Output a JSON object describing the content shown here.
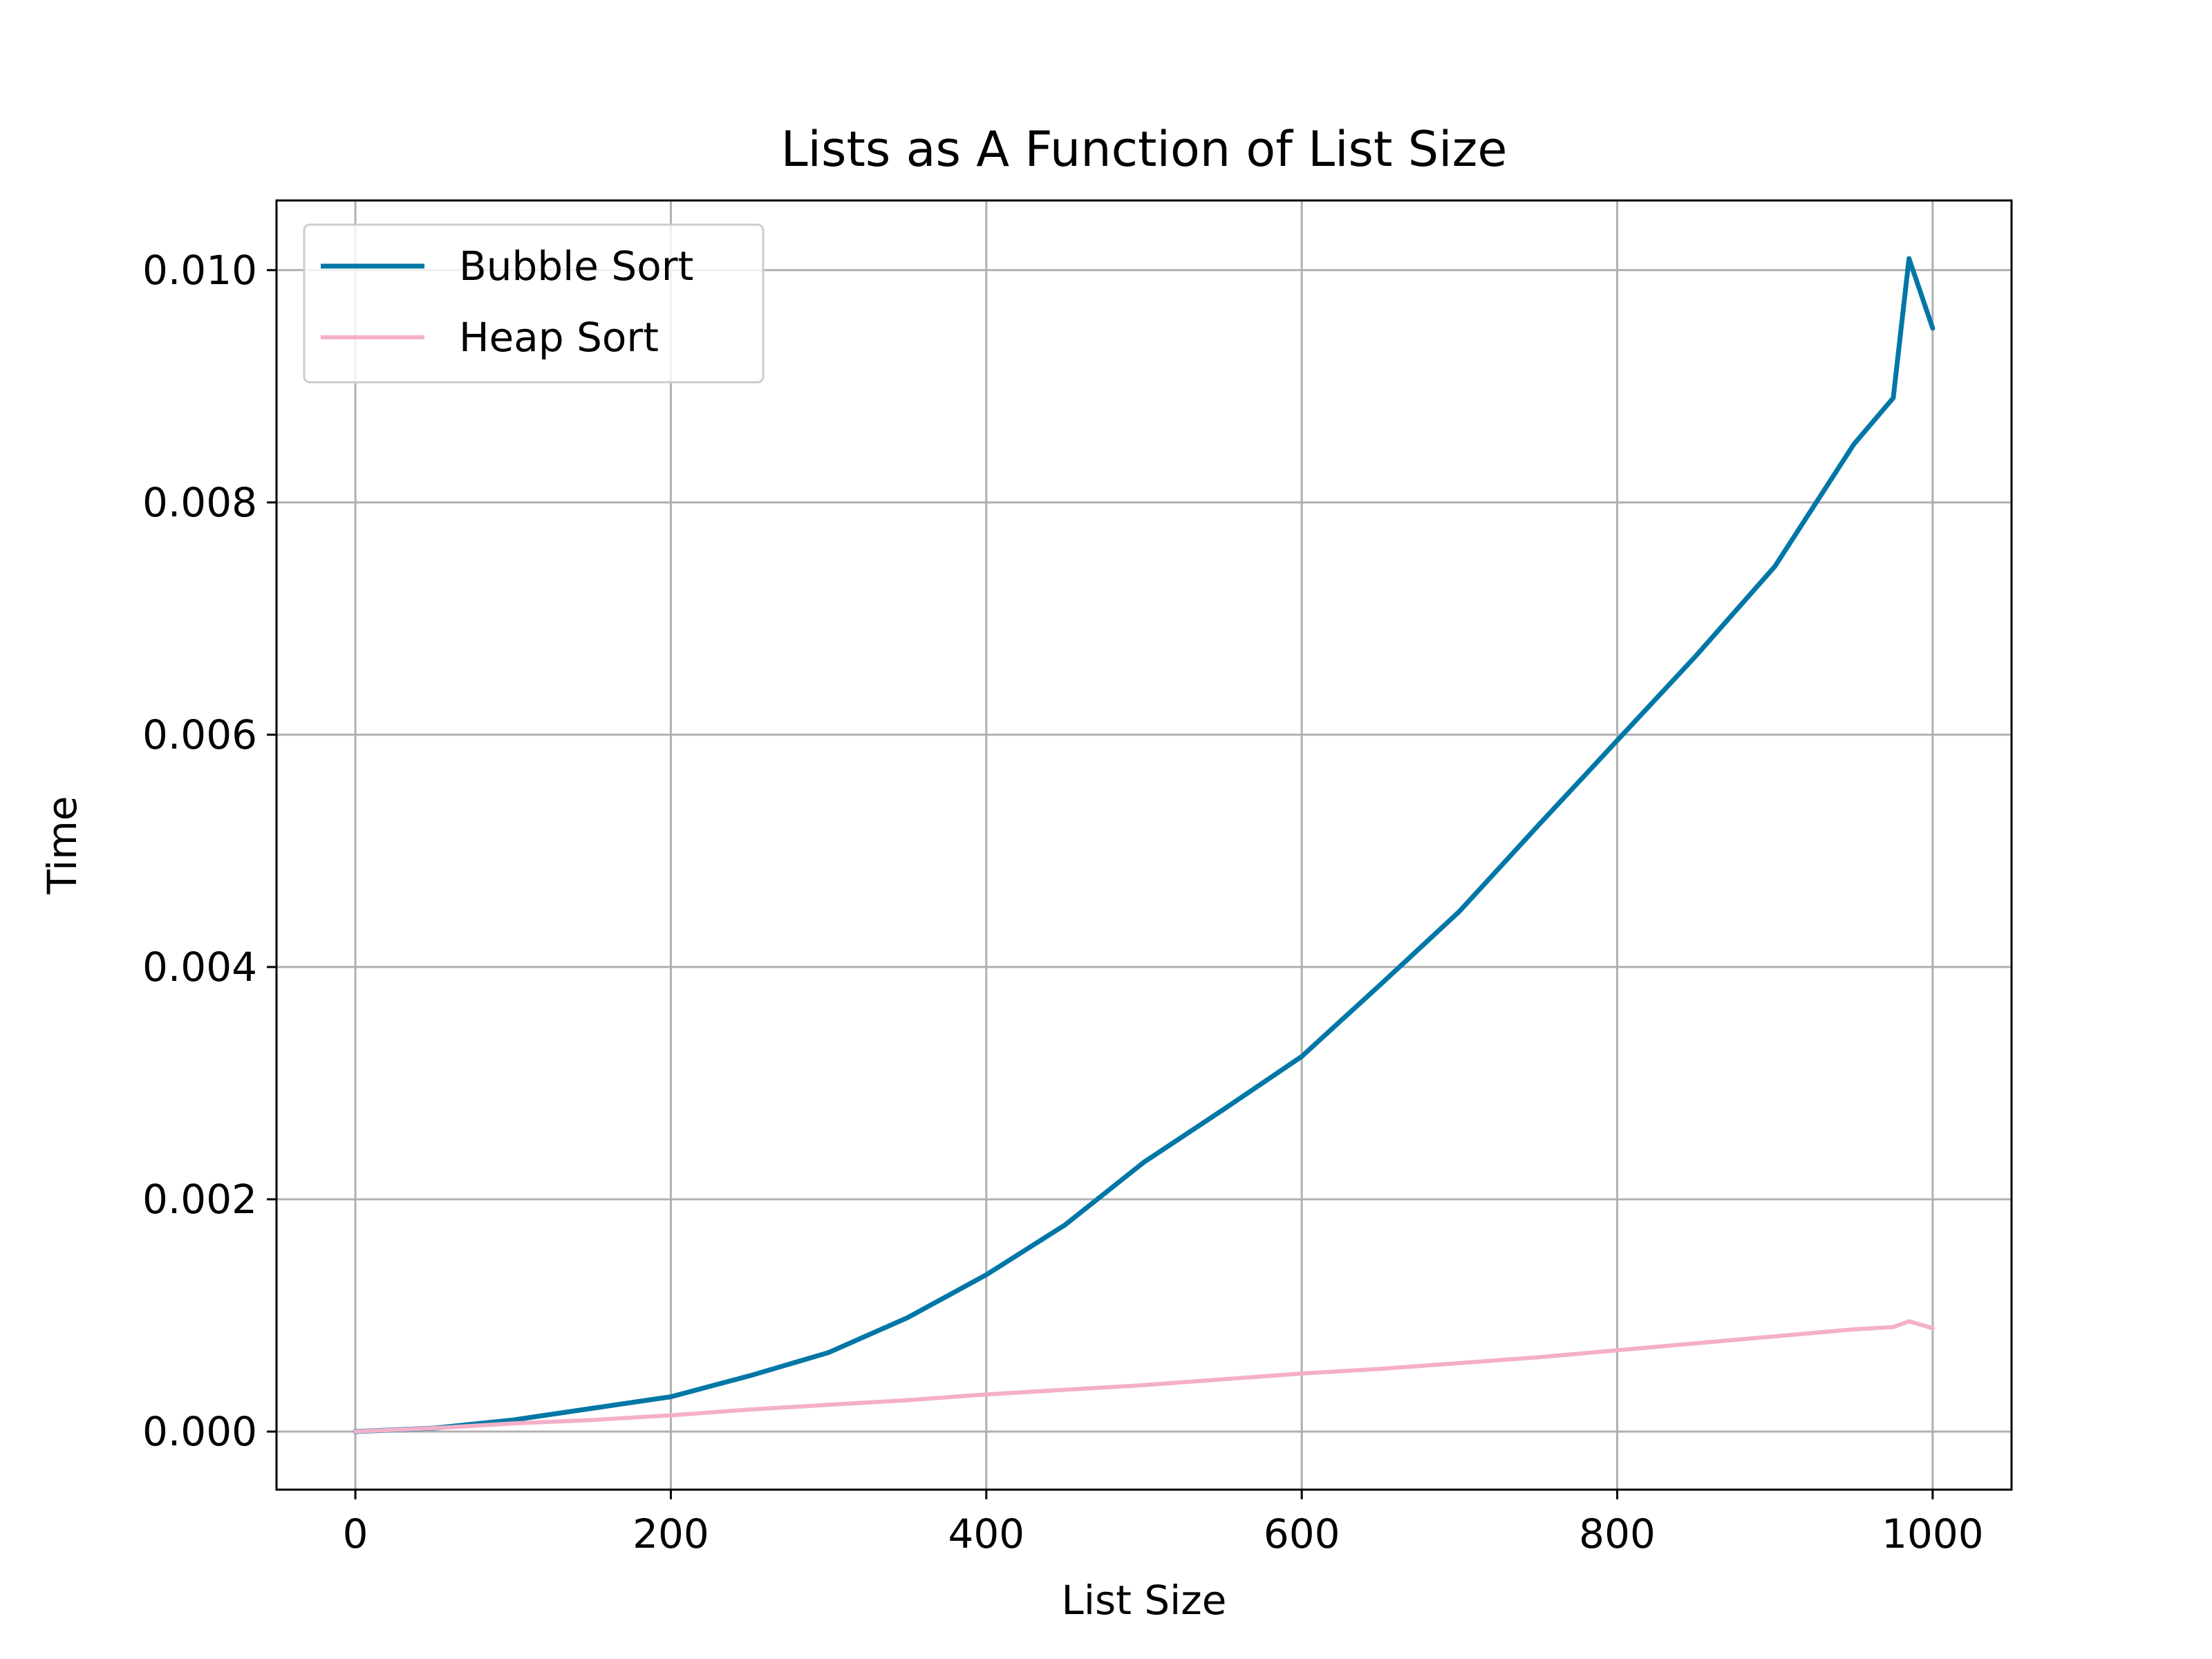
{
  "chart_data": {
    "type": "line",
    "title": "Lists as A Function of List Size",
    "xlabel": "List Size",
    "ylabel": "Time",
    "xlim": [
      -50,
      1050
    ],
    "ylim": [
      -0.0005,
      0.0106
    ],
    "x_ticks": [
      0,
      200,
      400,
      600,
      800,
      1000
    ],
    "x_tick_labels": [
      "0",
      "200",
      "400",
      "600",
      "800",
      "1000"
    ],
    "y_ticks": [
      0.0,
      0.002,
      0.004,
      0.006,
      0.008,
      0.01
    ],
    "y_tick_labels": [
      "0.000",
      "0.002",
      "0.004",
      "0.006",
      "0.008",
      "0.010"
    ],
    "grid": true,
    "legend_position": "top-left",
    "x": [
      0,
      50,
      100,
      150,
      200,
      250,
      300,
      350,
      400,
      450,
      500,
      550,
      600,
      650,
      700,
      750,
      800,
      850,
      900,
      950,
      975,
      985,
      1000
    ],
    "series": [
      {
        "name": "Bubble Sort",
        "color": "#0077a6",
        "values": [
          0.0,
          3e-05,
          0.0001,
          0.0002,
          0.0003,
          0.00048,
          0.00068,
          0.00098,
          0.00135,
          0.00178,
          0.00232,
          0.00277,
          0.00323,
          0.00385,
          0.00448,
          0.00522,
          0.00595,
          0.00668,
          0.00745,
          0.0085,
          0.0089,
          0.0101,
          0.0095
        ]
      },
      {
        "name": "Heap Sort",
        "color": "#f4b0c8",
        "values": [
          0.0,
          3e-05,
          7e-05,
          0.0001,
          0.00014,
          0.00019,
          0.00023,
          0.00027,
          0.00032,
          0.00036,
          0.0004,
          0.00045,
          0.0005,
          0.00054,
          0.00059,
          0.00064,
          0.0007,
          0.00076,
          0.00082,
          0.00088,
          0.0009,
          0.00095,
          0.00089
        ]
      }
    ]
  }
}
